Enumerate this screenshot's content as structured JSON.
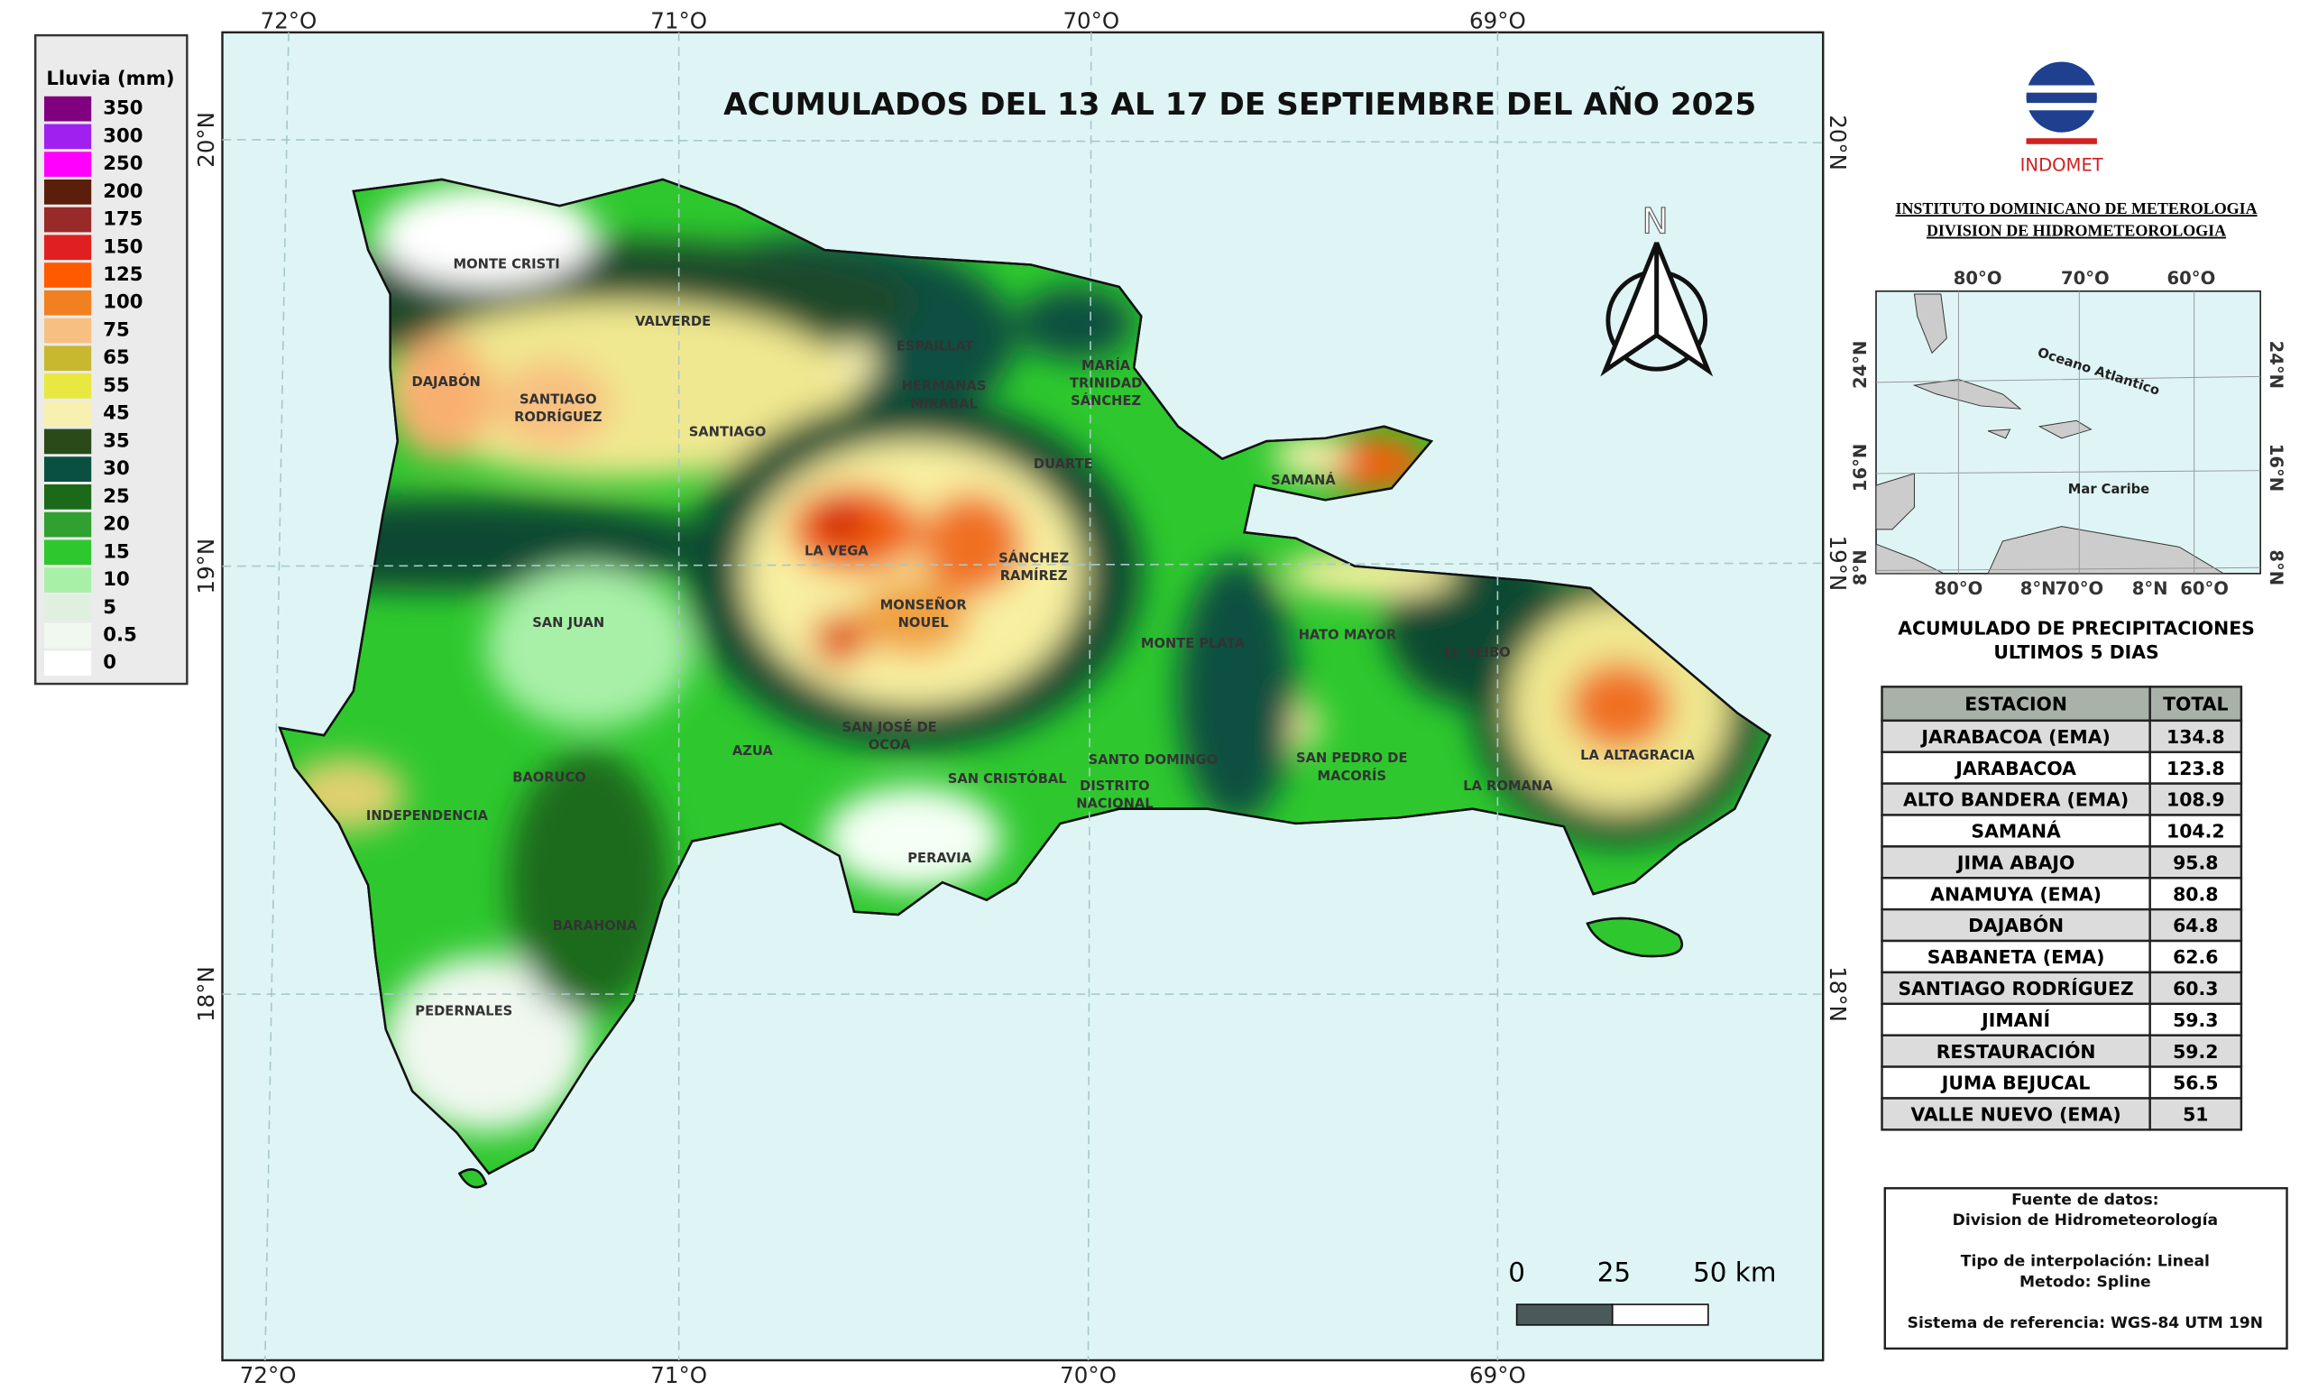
{
  "legend": {
    "title": "Lluvia (mm)",
    "items": [
      {
        "label": "350",
        "color": "#800080"
      },
      {
        "label": "300",
        "color": "#a020f0"
      },
      {
        "label": "250",
        "color": "#ff00ff"
      },
      {
        "label": "200",
        "color": "#5a1e0a"
      },
      {
        "label": "175",
        "color": "#9a2a2a"
      },
      {
        "label": "150",
        "color": "#e02020"
      },
      {
        "label": "125",
        "color": "#ff5a00"
      },
      {
        "label": "100",
        "color": "#f08020"
      },
      {
        "label": "75",
        "color": "#f8c080"
      },
      {
        "label": "65",
        "color": "#c8b830"
      },
      {
        "label": "55",
        "color": "#e8e840"
      },
      {
        "label": "45",
        "color": "#f8f0b0"
      },
      {
        "label": "35",
        "color": "#2a4a1a"
      },
      {
        "label": "30",
        "color": "#0a5040"
      },
      {
        "label": "25",
        "color": "#1a6a1a"
      },
      {
        "label": "20",
        "color": "#30a030"
      },
      {
        "label": "15",
        "color": "#2ec82e"
      },
      {
        "label": "10",
        "color": "#a8f0a8"
      },
      {
        "label": "5",
        "color": "#e0f0e0"
      },
      {
        "label": "0.5",
        "color": "#f0f8f0"
      },
      {
        "label": "0",
        "color": "#ffffff"
      }
    ]
  },
  "title": "ACUMULADOS DEL 13 AL 17 DE SEPTIEMBRE DEL AÑO 2025",
  "graticule": {
    "lon": [
      "72°O",
      "71°O",
      "70°O",
      "69°O"
    ],
    "lat": [
      "20°N",
      "19°N",
      "18°N"
    ]
  },
  "north": "N",
  "scale": {
    "ticks": [
      "0",
      "25",
      "50 km"
    ]
  },
  "logo": "INDOMET",
  "institute": [
    "INSTITUTO DOMINICANO DE METEROLOGIA",
    "DIVISION DE HIDROMETEOROLOGIA"
  ],
  "inset": {
    "lon_top": [
      "80°O",
      "70°O",
      "60°O"
    ],
    "lon_bottom": [
      "80°O",
      "8°N",
      "70°O",
      "8°N",
      "60°O"
    ],
    "lat": [
      "24°N",
      "16°N",
      "8°N"
    ],
    "ocean": "Oceano Atlantico",
    "sea": "Mar Caribe"
  },
  "table": {
    "title": [
      "ACUMULADO DE PRECIPITACIONES",
      "ULTIMOS 5 DIAS"
    ],
    "header": [
      "ESTACION",
      "TOTAL"
    ],
    "rows": [
      [
        "JARABACOA (EMA)",
        "134.8"
      ],
      [
        "JARABACOA",
        "123.8"
      ],
      [
        "ALTO BANDERA (EMA)",
        "108.9"
      ],
      [
        "SAMANÁ",
        "104.2"
      ],
      [
        "JIMA ABAJO",
        "95.8"
      ],
      [
        "ANAMUYA (EMA)",
        "80.8"
      ],
      [
        "DAJABÓN",
        "64.8"
      ],
      [
        "SABANETA (EMA)",
        "62.6"
      ],
      [
        "SANTIAGO RODRÍGUEZ",
        "60.3"
      ],
      [
        "JIMANÍ",
        "59.3"
      ],
      [
        "RESTAURACIÓN",
        "59.2"
      ],
      [
        "JUMA BEJUCAL",
        "56.5"
      ],
      [
        "VALLE NUEVO (EMA)",
        "51"
      ]
    ]
  },
  "notes": [
    "Fuente de datos:",
    "Division de Hidrometeorología",
    "Tipo de interpolación: Lineal",
    "Metodo: Spline",
    "Sistema de referencia: WGS-84 UTM 19N"
  ],
  "provinces": [
    [
      "MONTE CRISTI"
    ],
    [
      "VALVERDE"
    ],
    [
      "DAJABÓN"
    ],
    [
      "SANTIAGO",
      "RODRÍGUEZ"
    ],
    [
      "SANTIAGO"
    ],
    [
      "ESPAILLAT"
    ],
    [
      "HERMANAS",
      "MIRABAL"
    ],
    [
      "MARÍA",
      "TRINIDAD",
      "SÁNCHEZ"
    ],
    [
      "DUARTE"
    ],
    [
      "SAMANÁ"
    ],
    [
      "LA VEGA"
    ],
    [
      "SÁNCHEZ",
      "RAMÍREZ"
    ],
    [
      "MONSEÑOR",
      "NOUEL"
    ],
    [
      "SAN JUAN"
    ],
    [
      "MONTE PLATA"
    ],
    [
      "HATO MAYOR"
    ],
    [
      "EL SEIBO"
    ],
    [
      "SAN JOSÉ DE",
      "OCOA"
    ],
    [
      "AZUA"
    ],
    [
      "BAORUCO"
    ],
    [
      "SANTO DOMINGO"
    ],
    [
      "SAN CRISTÓBAL"
    ],
    [
      "DISTRITO",
      "NACIONAL"
    ],
    [
      "SAN PEDRO DE",
      "MACORÍS"
    ],
    [
      "LA ALTAGRACIA"
    ],
    [
      "LA ROMANA"
    ],
    [
      "INDEPENDENCIA"
    ],
    [
      "PERAVIA"
    ],
    [
      "BARAHONA"
    ],
    [
      "PEDERNALES"
    ]
  ]
}
